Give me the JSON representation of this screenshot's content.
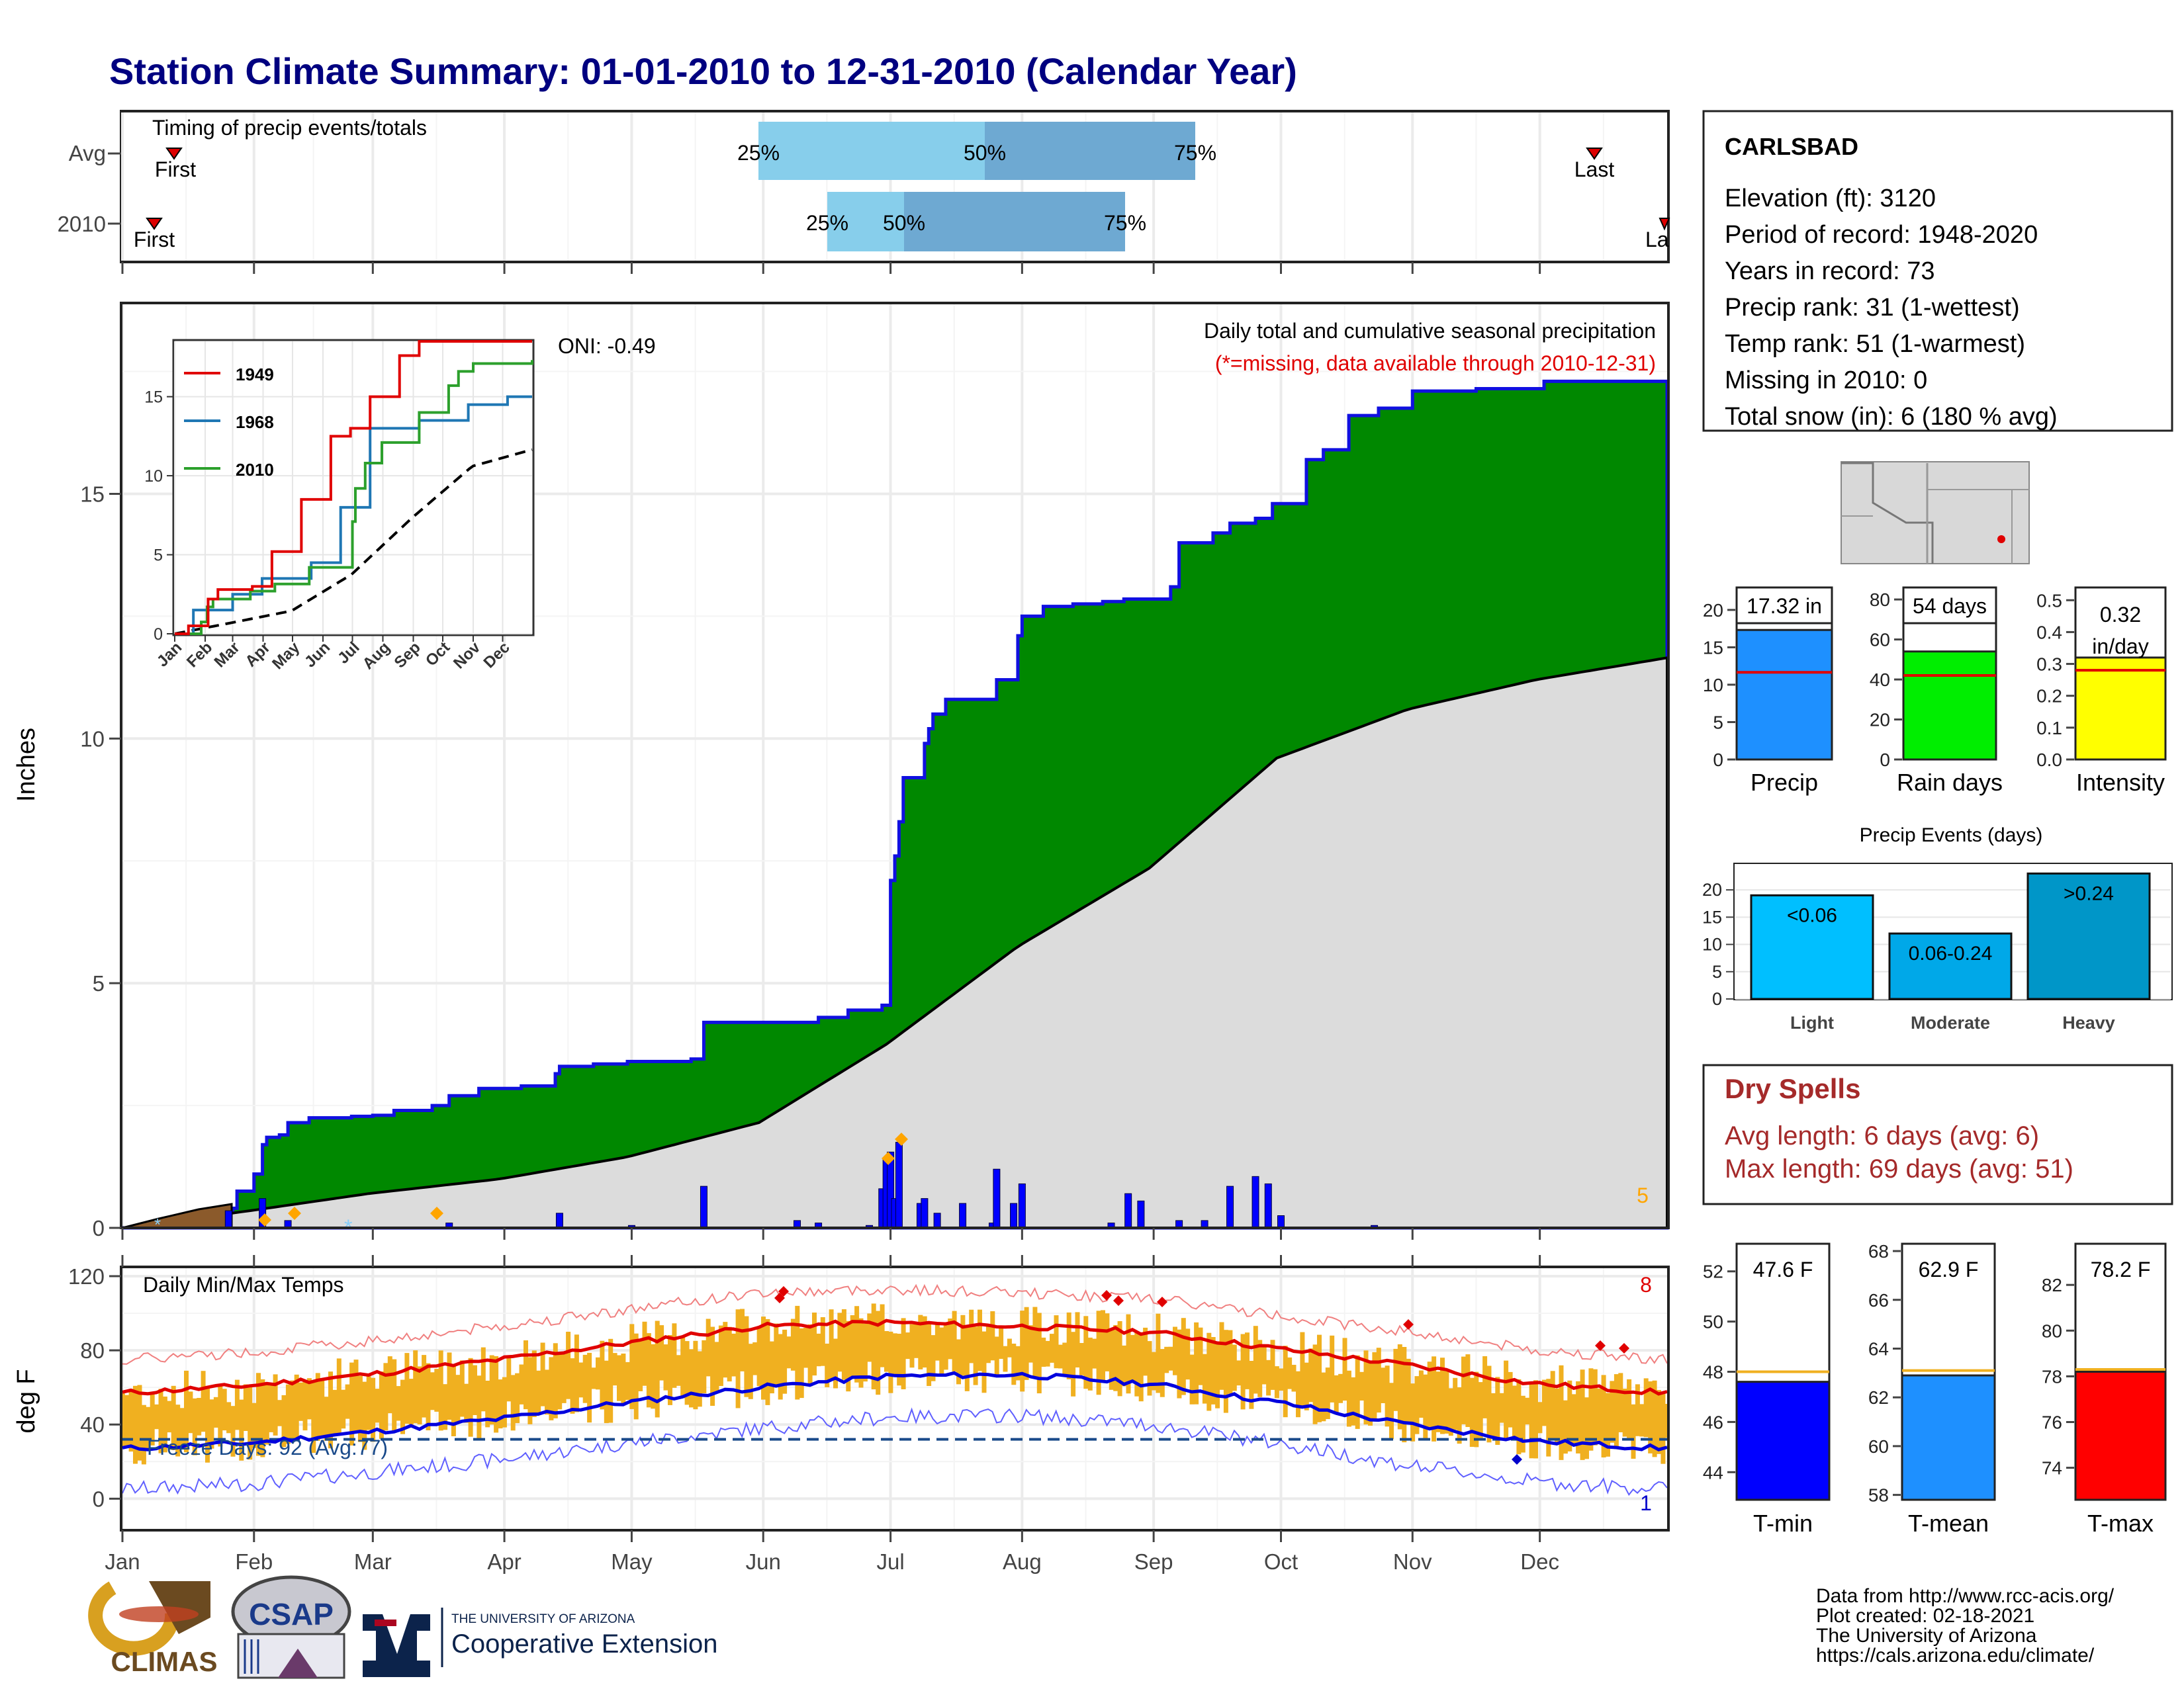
{
  "title": "Station Climate Summary: 01-01-2010 to 12-31-2010 (Calendar Year)",
  "colors": {
    "title": "#000080",
    "green": "#008800",
    "gray_area": "#dcdcdc",
    "blue_line": "#1010e0",
    "precip_bar": "#1e90ff",
    "rain_bar": "#00ee00",
    "intensity_bar": "#ffff00",
    "light_bar": "#00bfff",
    "moderate_bar": "#00a8e8",
    "heavy_bar": "#0096c8",
    "tmin_bar": "#0000ff",
    "tmean_bar": "#1e90ff",
    "tmax_bar": "#ff0000",
    "dry_spells": "#a52a2a",
    "temp_bars": "#f0b020"
  },
  "timing": {
    "label": "Timing of precip events/totals",
    "rows": [
      "Avg",
      "2010"
    ],
    "first_label": "First",
    "last_label": "Last",
    "last_label_cut": "La",
    "q25": "25%",
    "q50": "50%",
    "q75": "75%"
  },
  "precip": {
    "ylabel": "Inches",
    "oni": "ONI: -0.49",
    "subtitle": "Daily total and cumulative seasonal precipitation",
    "missing_note": "(*=missing, data available through 2010-12-31)",
    "count_label": "5",
    "yticks": [
      "0",
      "5",
      "10",
      "15"
    ]
  },
  "inset": {
    "legend": [
      "1949",
      "1968",
      "2010"
    ],
    "yticks": [
      "0",
      "5",
      "10",
      "15"
    ],
    "months": [
      "Jan",
      "Feb",
      "Mar",
      "Apr",
      "May",
      "Jun",
      "Jul",
      "Aug",
      "Sep",
      "Oct",
      "Nov",
      "Dec"
    ]
  },
  "temps": {
    "ylabel": "deg F",
    "title": "Daily Min/Max Temps",
    "freeze": "Freeze Days: 92 (Avg:77)",
    "count_max": "8",
    "count_min": "1",
    "yticks": [
      "0",
      "40",
      "80",
      "120"
    ]
  },
  "months": [
    "Jan",
    "Feb",
    "Mar",
    "Apr",
    "May",
    "Jun",
    "Jul",
    "Aug",
    "Sep",
    "Oct",
    "Nov",
    "Dec"
  ],
  "station": {
    "name": "CARLSBAD",
    "lines": [
      "Elevation (ft): 3120",
      "Period of record: 1948-2020",
      "Years in record: 73",
      "Precip rank: 31 (1-wettest)",
      "Temp rank: 51 (1-warmest)",
      "Missing in 2010: 0",
      "Total snow (in): 6 (180 % avg)"
    ]
  },
  "summary_bars": {
    "precip": {
      "label": "Precip",
      "value_label": "17.32 in",
      "yticks": [
        "0",
        "5",
        "10",
        "15",
        "20"
      ]
    },
    "rain_days": {
      "label": "Rain days",
      "value_label": "54 days",
      "yticks": [
        "0",
        "20",
        "40",
        "60",
        "80"
      ]
    },
    "intensity": {
      "label": "Intensity",
      "value_label": "0.32",
      "value_unit": "in/day",
      "yticks": [
        "0.0",
        "0.1",
        "0.2",
        "0.3",
        "0.4",
        "0.5"
      ]
    }
  },
  "events": {
    "title": "Precip Events (days)",
    "yticks": [
      "0",
      "5",
      "10",
      "15",
      "20"
    ],
    "categories": [
      "Light",
      "Moderate",
      "Heavy"
    ],
    "bar_labels": [
      "<0.06",
      "0.06-0.24",
      ">0.24"
    ]
  },
  "dry_spells": {
    "title": "Dry Spells",
    "avg": "Avg length: 6 days (avg: 6)",
    "max": "Max length: 69 days (avg: 51)"
  },
  "temp_summary": {
    "tmin": {
      "label": "T-min",
      "value_label": "47.6 F",
      "yticks": [
        "44",
        "46",
        "48",
        "50",
        "52"
      ]
    },
    "tmean": {
      "label": "T-mean",
      "value_label": "62.9 F",
      "yticks": [
        "58",
        "60",
        "62",
        "64",
        "66",
        "68"
      ]
    },
    "tmax": {
      "label": "T-max",
      "value_label": "78.2 F",
      "yticks": [
        "74",
        "76",
        "78",
        "80",
        "82"
      ]
    }
  },
  "footer": {
    "lines": [
      "Data from http://www.rcc-acis.org/",
      "Plot created: 02-18-2021",
      "The University of Arizona",
      "https://cals.arizona.edu/climate/"
    ],
    "climas": "CLIMAS",
    "csap": "CSAP",
    "ua_small": "THE UNIVERSITY OF ARIZONA",
    "ua_big": "Cooperative Extension"
  },
  "chart_data": [
    {
      "type": "bar",
      "title": "Timing of precip events/totals",
      "categories": [
        "Avg",
        "2010"
      ],
      "series": [
        {
          "name": "Avg",
          "first": "Jan 13",
          "q25": "Jun 1",
          "q50": "Jul 11",
          "q75": "Aug 19",
          "last": "Dec 16"
        },
        {
          "name": "2010",
          "first": "Jan 9",
          "q25": "Jun 13",
          "q50": "Jun 26",
          "q75": "Aug 5",
          "last": "Dec 31"
        }
      ]
    },
    {
      "type": "area",
      "title": "Daily total and cumulative seasonal precipitation",
      "ylabel": "Inches",
      "ylim": [
        0,
        18.9
      ],
      "cumulative_2010": [
        [
          1,
          0
        ],
        [
          9,
          0.05
        ],
        [
          20,
          0.1
        ],
        [
          27,
          0.4
        ],
        [
          28,
          0.75
        ],
        [
          32,
          1.1
        ],
        [
          34,
          1.7
        ],
        [
          35,
          1.85
        ],
        [
          38,
          1.9
        ],
        [
          40,
          2.15
        ],
        [
          45,
          2.25
        ],
        [
          55,
          2.28
        ],
        [
          60,
          2.3
        ],
        [
          65,
          2.4
        ],
        [
          74,
          2.5
        ],
        [
          78,
          2.7
        ],
        [
          85,
          2.85
        ],
        [
          95,
          2.9
        ],
        [
          103,
          3.15
        ],
        [
          104,
          3.3
        ],
        [
          112,
          3.35
        ],
        [
          120,
          3.4
        ],
        [
          135,
          3.45
        ],
        [
          138,
          4.2
        ],
        [
          160,
          4.2
        ],
        [
          165,
          4.3
        ],
        [
          172,
          4.45
        ],
        [
          180,
          4.55
        ],
        [
          182,
          7.1
        ],
        [
          183,
          7.6
        ],
        [
          184,
          8.3
        ],
        [
          185,
          9.2
        ],
        [
          190,
          9.9
        ],
        [
          191,
          10.2
        ],
        [
          192,
          10.5
        ],
        [
          195,
          10.8
        ],
        [
          207,
          11.2
        ],
        [
          212,
          12.1
        ],
        [
          213,
          12.5
        ],
        [
          218,
          12.7
        ],
        [
          225,
          12.75
        ],
        [
          232,
          12.8
        ],
        [
          237,
          12.85
        ],
        [
          248,
          13.1
        ],
        [
          250,
          14.0
        ],
        [
          258,
          14.2
        ],
        [
          262,
          14.4
        ],
        [
          268,
          14.5
        ],
        [
          272,
          14.8
        ],
        [
          280,
          15.7
        ],
        [
          284,
          15.9
        ],
        [
          290,
          16.6
        ],
        [
          297,
          16.75
        ],
        [
          305,
          17.1
        ],
        [
          320,
          17.15
        ],
        [
          336,
          17.3
        ],
        [
          365,
          17.32
        ]
      ],
      "average_cumulative": [
        [
          1,
          0
        ],
        [
          31,
          0.35
        ],
        [
          59,
          0.7
        ],
        [
          90,
          1.0
        ],
        [
          120,
          1.45
        ],
        [
          151,
          2.15
        ],
        [
          181,
          3.75
        ],
        [
          212,
          5.75
        ],
        [
          243,
          7.35
        ],
        [
          273,
          9.6
        ],
        [
          304,
          10.6
        ],
        [
          334,
          11.2
        ],
        [
          365,
          11.65
        ]
      ],
      "daily_bars": [
        [
          26,
          0.35
        ],
        [
          34,
          0.6
        ],
        [
          40,
          0.15
        ],
        [
          78,
          0.1
        ],
        [
          104,
          0.3
        ],
        [
          121,
          0.05
        ],
        [
          138,
          0.85
        ],
        [
          160,
          0.15
        ],
        [
          165,
          0.1
        ],
        [
          177,
          0.05
        ],
        [
          180,
          0.8
        ],
        [
          181,
          1.4
        ],
        [
          182,
          1.55
        ],
        [
          183,
          0.6
        ],
        [
          184,
          1.75
        ],
        [
          189,
          0.5
        ],
        [
          190,
          0.6
        ],
        [
          193,
          0.3
        ],
        [
          199,
          0.5
        ],
        [
          206,
          0.1
        ],
        [
          207,
          1.2
        ],
        [
          211,
          0.5
        ],
        [
          213,
          0.9
        ],
        [
          234,
          0.1
        ],
        [
          238,
          0.7
        ],
        [
          241,
          0.55
        ],
        [
          250,
          0.15
        ],
        [
          256,
          0.15
        ],
        [
          262,
          0.85
        ],
        [
          268,
          1.05
        ],
        [
          271,
          0.9
        ],
        [
          274,
          0.25
        ],
        [
          296,
          0.05
        ]
      ]
    },
    {
      "type": "line",
      "title": "inset cumulative precipitation",
      "ylim": [
        0,
        18.5
      ],
      "series": [
        {
          "name": "1949",
          "values": [
            [
              1,
              0
            ],
            [
              15,
              0.5
            ],
            [
              35,
              2.2
            ],
            [
              45,
              2.8
            ],
            [
              80,
              3
            ],
            [
              100,
              5.2
            ],
            [
              130,
              8.5
            ],
            [
              160,
              12.5
            ],
            [
              180,
              13
            ],
            [
              200,
              15
            ],
            [
              230,
              17.6
            ],
            [
              250,
              18.5
            ],
            [
              365,
              18.5
            ]
          ]
        },
        {
          "name": "1968",
          "values": [
            [
              1,
              0
            ],
            [
              20,
              1.5
            ],
            [
              60,
              2.5
            ],
            [
              90,
              3.5
            ],
            [
              140,
              4.5
            ],
            [
              170,
              8
            ],
            [
              200,
              13
            ],
            [
              230,
              13
            ],
            [
              250,
              13.5
            ],
            [
              300,
              14.5
            ],
            [
              340,
              15
            ],
            [
              365,
              15
            ]
          ]
        },
        {
          "name": "2010",
          "values": [
            [
              1,
              0
            ],
            [
              28,
              0.75
            ],
            [
              34,
              1.7
            ],
            [
              40,
              2.2
            ],
            [
              78,
              2.7
            ],
            [
              103,
              3.15
            ],
            [
              138,
              4.2
            ],
            [
              182,
              7.1
            ],
            [
              185,
              9.2
            ],
            [
              195,
              10.8
            ],
            [
              212,
              12.1
            ],
            [
              250,
              14
            ],
            [
              280,
              15.7
            ],
            [
              290,
              16.6
            ],
            [
              305,
              17.1
            ],
            [
              365,
              17.32
            ]
          ]
        },
        {
          "name": "average",
          "values": [
            [
              1,
              0
            ],
            [
              59,
              0.7
            ],
            [
              120,
              1.45
            ],
            [
              181,
              3.75
            ],
            [
              243,
              7.35
            ],
            [
              304,
              10.6
            ],
            [
              365,
              11.65
            ]
          ]
        }
      ]
    },
    {
      "type": "line",
      "title": "Daily Min/Max Temps",
      "ylabel": "deg F",
      "ylim": [
        -17,
        125
      ],
      "freeze_line": 32,
      "avg_max": [
        [
          1,
          57
        ],
        [
          31,
          61
        ],
        [
          59,
          67
        ],
        [
          90,
          75
        ],
        [
          120,
          84
        ],
        [
          151,
          93
        ],
        [
          181,
          95
        ],
        [
          212,
          93
        ],
        [
          243,
          90
        ],
        [
          273,
          81
        ],
        [
          304,
          72
        ],
        [
          334,
          62
        ],
        [
          365,
          57
        ]
      ],
      "avg_min": [
        [
          1,
          27
        ],
        [
          31,
          30
        ],
        [
          59,
          36
        ],
        [
          90,
          43
        ],
        [
          120,
          52
        ],
        [
          151,
          60
        ],
        [
          181,
          66
        ],
        [
          212,
          67
        ],
        [
          243,
          62
        ],
        [
          273,
          52
        ],
        [
          304,
          40
        ],
        [
          334,
          31
        ],
        [
          365,
          27
        ]
      ]
    },
    {
      "type": "bar",
      "categories": [
        "Precip",
        "Rain days",
        "Intensity"
      ],
      "values": [
        17.32,
        54,
        0.32
      ],
      "averages": [
        11.65,
        42,
        0.28
      ]
    },
    {
      "type": "bar",
      "title": "Precip Events (days)",
      "categories": [
        "Light",
        "Moderate",
        "Heavy"
      ],
      "values": [
        19,
        12,
        23
      ]
    },
    {
      "type": "bar",
      "categories": [
        "T-min",
        "T-mean",
        "T-max"
      ],
      "values": [
        47.6,
        62.9,
        78.2
      ],
      "averages": [
        48.0,
        63.1,
        78.3
      ]
    }
  ]
}
